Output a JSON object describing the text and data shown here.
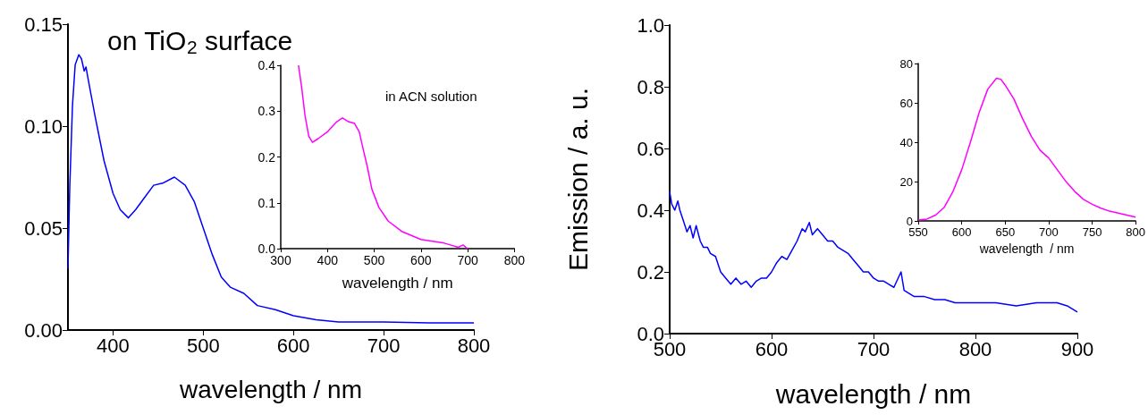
{
  "chart_data": [
    {
      "type": "line",
      "title": "on TiO$_{2}$ surface",
      "xlabel": "wavelength / nm",
      "xlim": [
        350,
        800
      ],
      "xticks": [
        400,
        500,
        600,
        700,
        800
      ],
      "ylim": [
        0,
        0.15
      ],
      "yticks": [
        {
          "value": 0,
          "label": "0.00"
        },
        {
          "value": 0.05,
          "label": "0.05"
        },
        {
          "value": 0.1,
          "label": "0.10"
        },
        {
          "value": 0.15,
          "label": "0.15"
        }
      ],
      "series": [
        {
          "color": "#0000ff",
          "x": [
            350,
            352,
            355,
            358,
            362,
            365,
            368,
            370,
            372,
            380,
            390,
            400,
            408,
            417,
            425,
            435,
            445,
            455,
            468,
            480,
            490,
            500,
            510,
            520,
            530,
            545,
            560,
            580,
            600,
            625,
            650,
            700,
            750,
            800
          ],
          "values": [
            0.03,
            0.07,
            0.11,
            0.13,
            0.135,
            0.133,
            0.127,
            0.129,
            0.124,
            0.105,
            0.083,
            0.067,
            0.059,
            0.055,
            0.059,
            0.065,
            0.071,
            0.072,
            0.075,
            0.071,
            0.063,
            0.05,
            0.037,
            0.026,
            0.021,
            0.018,
            0.012,
            0.01,
            0.007,
            0.005,
            0.004,
            0.004,
            0.0035,
            0.0035
          ]
        }
      ]
    },
    {
      "type": "line",
      "title": "in ACN solution",
      "xlabel": "wavelength / nm",
      "xlim": [
        300,
        800
      ],
      "xticks": [
        300,
        400,
        500,
        600,
        700,
        800
      ],
      "ylim": [
        0,
        0.4
      ],
      "yticks": [
        {
          "value": 0,
          "label": "0.0"
        },
        {
          "value": 0.1,
          "label": "0.1"
        },
        {
          "value": 0.2,
          "label": "0.2"
        },
        {
          "value": 0.3,
          "label": "0.3"
        },
        {
          "value": 0.4,
          "label": "0.4"
        }
      ],
      "series": [
        {
          "color": "#ff00ff",
          "x": [
            338,
            345,
            352,
            360,
            368,
            380,
            400,
            420,
            432,
            445,
            458,
            468,
            478,
            485,
            495,
            510,
            530,
            560,
            600,
            650,
            680,
            690,
            700
          ],
          "values": [
            0.4,
            0.35,
            0.29,
            0.245,
            0.232,
            0.24,
            0.255,
            0.277,
            0.285,
            0.277,
            0.273,
            0.255,
            0.21,
            0.18,
            0.13,
            0.09,
            0.06,
            0.037,
            0.02,
            0.012,
            0.003,
            0.008,
            0
          ]
        }
      ]
    },
    {
      "type": "line",
      "xlabel": "wavelength / nm",
      "ylabel": "Emission / a. u.",
      "xlim": [
        500,
        900
      ],
      "xticks": [
        500,
        600,
        700,
        800,
        900
      ],
      "ylim": [
        0,
        1
      ],
      "yticks": [
        {
          "value": 0,
          "label": "0.0"
        },
        {
          "value": 0.2,
          "label": "0.2"
        },
        {
          "value": 0.4,
          "label": "0.4"
        },
        {
          "value": 0.6,
          "label": "0.6"
        },
        {
          "value": 0.8,
          "label": "0.8"
        },
        {
          "value": 1,
          "label": "1.0"
        }
      ],
      "series": [
        {
          "color": "#0000ff",
          "x": [
            500,
            502,
            505,
            508,
            510,
            513,
            517,
            520,
            523,
            526,
            530,
            533,
            537,
            540,
            545,
            550,
            555,
            560,
            565,
            570,
            575,
            580,
            585,
            590,
            595,
            600,
            605,
            610,
            615,
            620,
            625,
            630,
            633,
            637,
            640,
            645,
            650,
            655,
            660,
            665,
            670,
            675,
            680,
            685,
            690,
            695,
            700,
            705,
            710,
            715,
            720,
            727,
            730,
            740,
            750,
            760,
            770,
            780,
            790,
            800,
            820,
            840,
            860,
            880,
            890,
            900
          ],
          "values": [
            0.46,
            0.42,
            0.4,
            0.43,
            0.4,
            0.37,
            0.33,
            0.35,
            0.31,
            0.35,
            0.3,
            0.28,
            0.28,
            0.26,
            0.25,
            0.2,
            0.18,
            0.16,
            0.18,
            0.16,
            0.17,
            0.15,
            0.17,
            0.18,
            0.18,
            0.2,
            0.23,
            0.25,
            0.24,
            0.27,
            0.3,
            0.34,
            0.33,
            0.36,
            0.32,
            0.34,
            0.32,
            0.3,
            0.3,
            0.28,
            0.27,
            0.26,
            0.24,
            0.22,
            0.2,
            0.2,
            0.18,
            0.17,
            0.17,
            0.16,
            0.15,
            0.2,
            0.14,
            0.12,
            0.12,
            0.11,
            0.11,
            0.1,
            0.1,
            0.1,
            0.1,
            0.09,
            0.1,
            0.1,
            0.09,
            0.07
          ]
        }
      ]
    },
    {
      "type": "line",
      "xlabel": "wavelength  / nm",
      "xlim": [
        550,
        800
      ],
      "xticks": [
        550,
        600,
        650,
        700,
        750,
        800
      ],
      "ylim": [
        0,
        80
      ],
      "yticks": [
        0,
        20,
        40,
        60,
        80
      ],
      "series": [
        {
          "color": "#ff00ff",
          "x": [
            550,
            560,
            570,
            580,
            590,
            600,
            610,
            620,
            630,
            640,
            645,
            650,
            660,
            670,
            680,
            690,
            700,
            710,
            720,
            730,
            740,
            750,
            760,
            770,
            780,
            790,
            800
          ],
          "values": [
            0.5,
            1,
            3,
            7,
            15,
            26,
            40,
            55,
            67,
            72.5,
            72,
            69,
            62,
            52,
            43,
            36,
            32,
            26,
            20,
            15,
            11,
            8.5,
            6.5,
            5,
            4,
            3,
            2
          ]
        }
      ]
    }
  ]
}
